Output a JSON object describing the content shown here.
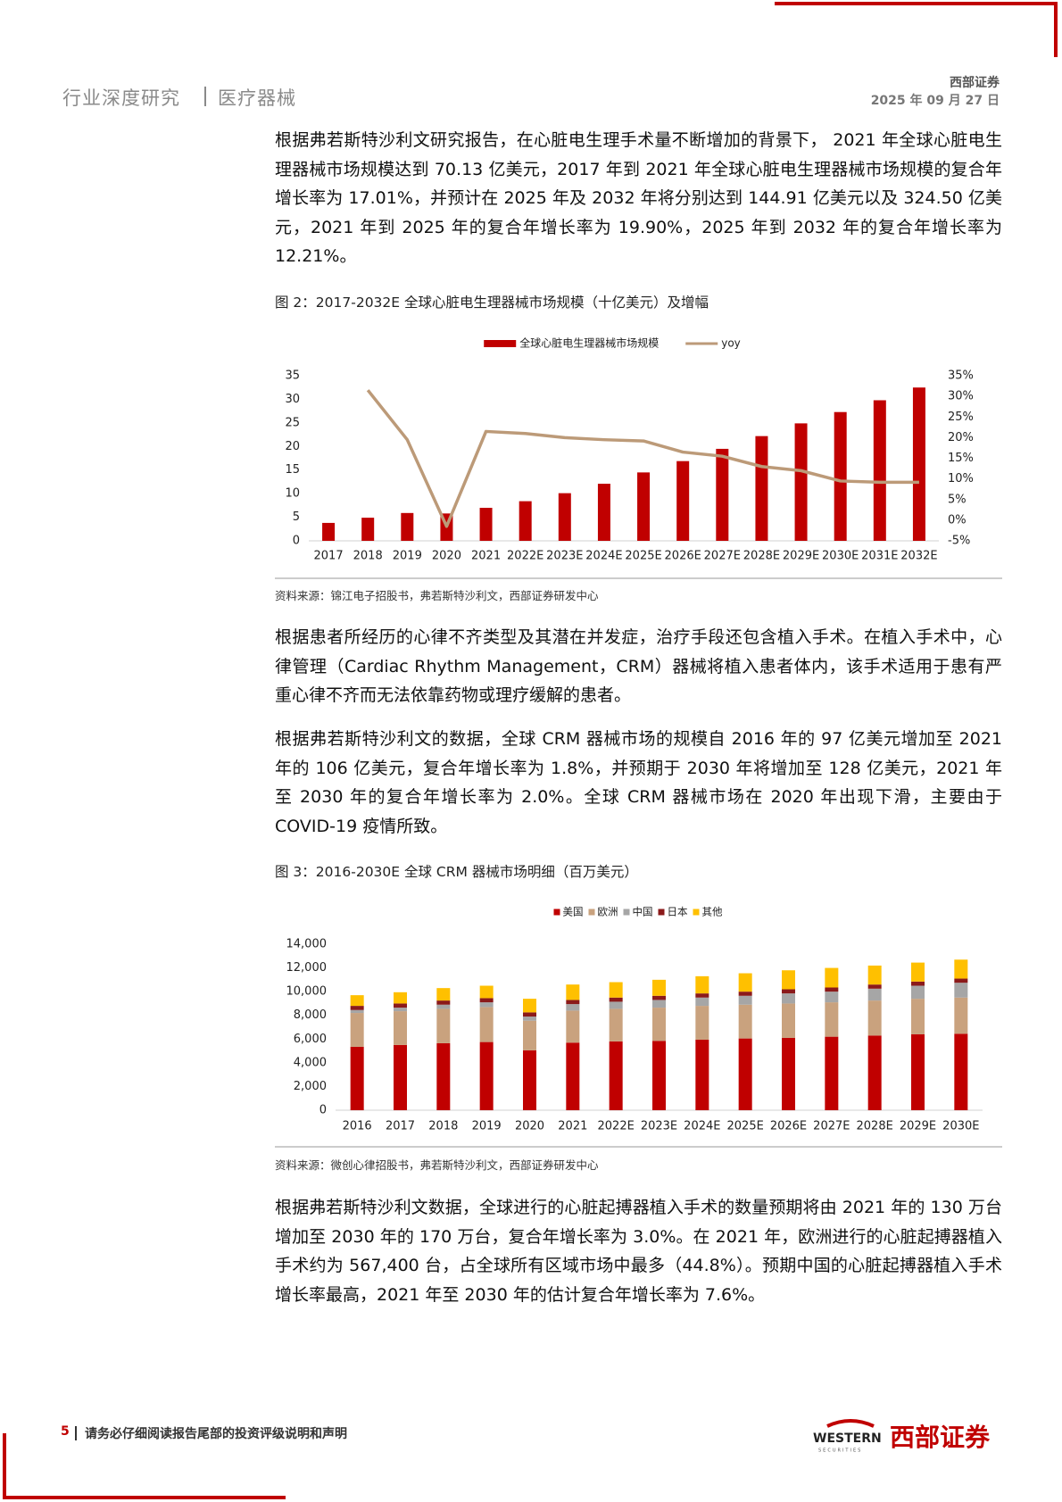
{
  "header": {
    "section": "行业深度研究",
    "category": "医疗器械",
    "company": "西部证券",
    "date": "2025 年 09 月 27 日"
  },
  "paragraphs": [
    "根据弗若斯特沙利文研究报告，在心脏电生理手术量不断增加的背景下， 2021 年全球心脏电生理器械市场规模达到 70.13 亿美元，2017 年到 2021 年全球心脏电生理器械市场规模的复合年增长率为 17.01%，并预计在 2025 年及 2032 年将分别达到 144.91 亿美元以及 324.50 亿美元，2021 年到 2025 年的复合年增长率为 19.90%，2025 年到 2032 年的复合年增长率为 12.21%。",
    "根据患者所经历的心律不齐类型及其潜在并发症，治疗手段还包含植入手术。在植入手术中，心律管理（Cardiac Rhythm Management，CRM）器械将植入患者体内，该手术适用于患有严重心律不齐而无法依靠药物或理疗缓解的患者。",
    "根据弗若斯特沙利文的数据，全球 CRM 器械市场的规模自 2016 年的 97 亿美元增加至 2021 年的 106 亿美元，复合年增长率为 1.8%，并预期于 2030 年将增加至 128 亿美元，2021 年至 2030 年的复合年增长率为 2.0%。全球 CRM 器械市场在 2020 年出现下滑，主要由于 COVID-19 疫情所致。",
    "根据弗若斯特沙利文数据，全球进行的心脏起搏器植入手术的数量预期将由 2021 年的 130 万台增加至 2030 年的 170 万台，复合年增长率为 3.0%。在 2021 年，欧洲进行的心脏起搏器植入手术约为 567,400 台，占全球所有区域市场中最多（44.8%）。预期中国的心脏起搏器植入手术增长率最高，2021 年至 2030 年的估计复合年增长率为 7.6%。"
  ],
  "chart_data": [
    {
      "type": "bar_line",
      "title": "图 2：2017-2032E 全球心脏电生理器械市场规模（十亿美元）及增幅",
      "source": "资料来源：锦江电子招股书，弗若斯特沙利文，西部证券研发中心",
      "categories": [
        "2017",
        "2018",
        "2019",
        "2020",
        "2021",
        "2022E",
        "2023E",
        "2024E",
        "2025E",
        "2026E",
        "2027E",
        "2028E",
        "2029E",
        "2030E",
        "2031E",
        "2032E"
      ],
      "series": [
        {
          "name": "全球心脏电生理器械市场规模",
          "color": "#c00000",
          "kind": "bar",
          "values": [
            3.8,
            4.9,
            5.9,
            5.8,
            7.0,
            8.4,
            10.1,
            12.1,
            14.5,
            16.9,
            19.5,
            22.2,
            24.9,
            27.3,
            29.8,
            32.5
          ]
        },
        {
          "name": "yoy",
          "color": "#bc9a78",
          "kind": "line",
          "axis": "y2",
          "values": [
            null,
            31.5,
            19.5,
            -1.5,
            21.5,
            21,
            20,
            19.5,
            19.2,
            16.5,
            15.5,
            13,
            12,
            9.5,
            9.2,
            9.2
          ]
        }
      ],
      "ylim": [
        0,
        35
      ],
      "yticks": [
        0,
        5,
        10,
        15,
        20,
        25,
        30,
        35
      ],
      "y2lim": [
        -5,
        35
      ],
      "y2ticks": [
        {
          "value": -5,
          "label": "-5%"
        },
        {
          "value": 0,
          "label": "0%"
        },
        {
          "value": 5,
          "label": "5%"
        },
        {
          "value": 10,
          "label": "10%"
        },
        {
          "value": 15,
          "label": "15%"
        },
        {
          "value": 20,
          "label": "20%"
        },
        {
          "value": 25,
          "label": "25%"
        },
        {
          "value": 30,
          "label": "30%"
        },
        {
          "value": 35,
          "label": "35%"
        }
      ],
      "grid": false,
      "legend": "top"
    },
    {
      "type": "stacked_bar",
      "title": "图 3：2016-2030E 全球 CRM 器械市场明细（百万美元）",
      "source": "资料来源：微创心律招股书，弗若斯特沙利文，西部证券研发中心",
      "categories": [
        "2016",
        "2017",
        "2018",
        "2019",
        "2020",
        "2021",
        "2022E",
        "2023E",
        "2024E",
        "2025E",
        "2026E",
        "2027E",
        "2028E",
        "2029E",
        "2030E"
      ],
      "series": [
        {
          "name": "美国",
          "color": "#c00000",
          "values": [
            5350,
            5500,
            5650,
            5750,
            5050,
            5700,
            5800,
            5850,
            5950,
            6050,
            6100,
            6200,
            6300,
            6400,
            6450
          ]
        },
        {
          "name": "欧洲",
          "color": "#c9a27e",
          "values": [
            2850,
            2850,
            2900,
            2950,
            2500,
            2700,
            2750,
            2800,
            2850,
            2850,
            2900,
            2900,
            2950,
            3000,
            3050
          ]
        },
        {
          "name": "中国",
          "color": "#a6a6a6",
          "values": [
            250,
            300,
            350,
            400,
            350,
            550,
            600,
            650,
            700,
            750,
            850,
            900,
            1000,
            1100,
            1250
          ]
        },
        {
          "name": "日本",
          "color": "#8b1a1a",
          "values": [
            350,
            350,
            350,
            350,
            350,
            350,
            350,
            350,
            350,
            350,
            350,
            350,
            350,
            350,
            350
          ]
        },
        {
          "name": "其他",
          "color": "#ffc000",
          "values": [
            900,
            950,
            1050,
            1050,
            1150,
            1300,
            1300,
            1350,
            1450,
            1550,
            1600,
            1650,
            1600,
            1600,
            1600
          ]
        }
      ],
      "ylim": [
        0,
        14000
      ],
      "yticks": [
        0,
        {
          "value": 2000,
          "label": "2,000"
        },
        {
          "value": 4000,
          "label": "4,000"
        },
        {
          "value": 6000,
          "label": "6,000"
        },
        {
          "value": 8000,
          "label": "8,000"
        },
        {
          "value": 10000,
          "label": "10,000"
        },
        {
          "value": 12000,
          "label": "12,000"
        },
        {
          "value": 14000,
          "label": "14,000"
        }
      ],
      "grid": false,
      "legend": "top"
    }
  ],
  "footer": {
    "page": "5",
    "notice": "请务必仔细阅读报告尾部的投资评级说明和声明",
    "logo_en": "WESTERN",
    "logo_sub": "SECURITIES",
    "logo_cn": "西部证券"
  }
}
